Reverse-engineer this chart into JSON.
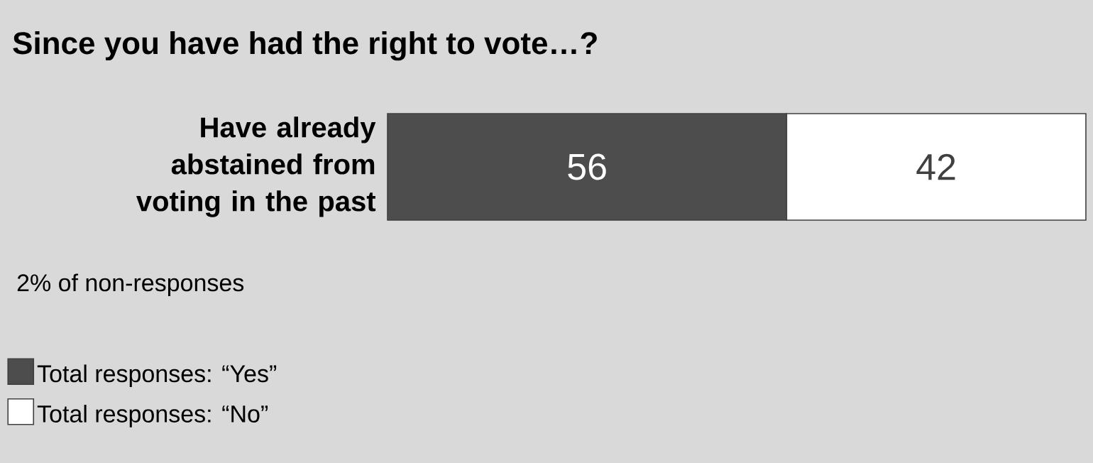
{
  "chart_data": {
    "type": "bar",
    "orientation": "horizontal",
    "stacked": true,
    "title": "Since you have had the right to vote…?",
    "categories": [
      "Have already abstained from voting in the past"
    ],
    "series": [
      {
        "name": "Total responses: “Yes”",
        "color": "#4d4d4d",
        "values": [
          56
        ]
      },
      {
        "name": "Total responses: “No”",
        "color": "#ffffff",
        "values": [
          42
        ]
      }
    ],
    "data_labels": true,
    "legend": "bottom left",
    "annotations": [
      "2% of non-responses"
    ]
  }
}
